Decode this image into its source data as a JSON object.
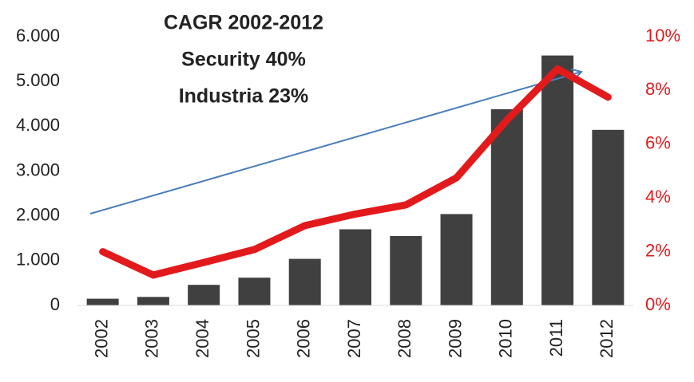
{
  "chart_data": {
    "type": "bar-line",
    "annotation": [
      "CAGR 2002-2012",
      "Security 40%",
      "Industria 23%"
    ],
    "categories": [
      "2002",
      "2003",
      "2004",
      "2005",
      "2006",
      "2007",
      "2008",
      "2009",
      "2010",
      "2011",
      "2012"
    ],
    "series": [
      {
        "type": "bar",
        "color": "#404040",
        "axis": "y",
        "values": [
          150,
          190,
          460,
          620,
          1040,
          1700,
          1550,
          2040,
          4380,
          5580,
          3920
        ]
      },
      {
        "type": "line",
        "color": "#e31a1c",
        "axis": "y2",
        "values": [
          2.0,
          1.13,
          1.6,
          2.08,
          2.97,
          3.4,
          3.74,
          4.75,
          6.9,
          8.8,
          7.75
        ]
      }
    ],
    "ylim": [
      0,
      6000
    ],
    "yticks": [
      0,
      {
        "value": 1000,
        "label": "1.000"
      },
      {
        "value": 2000,
        "label": "2.000"
      },
      {
        "value": 3000,
        "label": "3.000"
      },
      {
        "value": 4000,
        "label": "4.000"
      },
      {
        "value": 5000,
        "label": "5.000"
      },
      {
        "value": 6000,
        "label": "6.000"
      }
    ],
    "y2lim": [
      0,
      10
    ],
    "y2ticks": [
      {
        "value": 0,
        "label": "0%"
      },
      {
        "value": 2,
        "label": "2%"
      },
      {
        "value": 4,
        "label": "4%"
      },
      {
        "value": 6,
        "label": "6%"
      },
      {
        "value": 8,
        "label": "8%"
      },
      {
        "value": 10,
        "label": "10%"
      }
    ],
    "y2color": "#e31a1c",
    "grid": false
  }
}
